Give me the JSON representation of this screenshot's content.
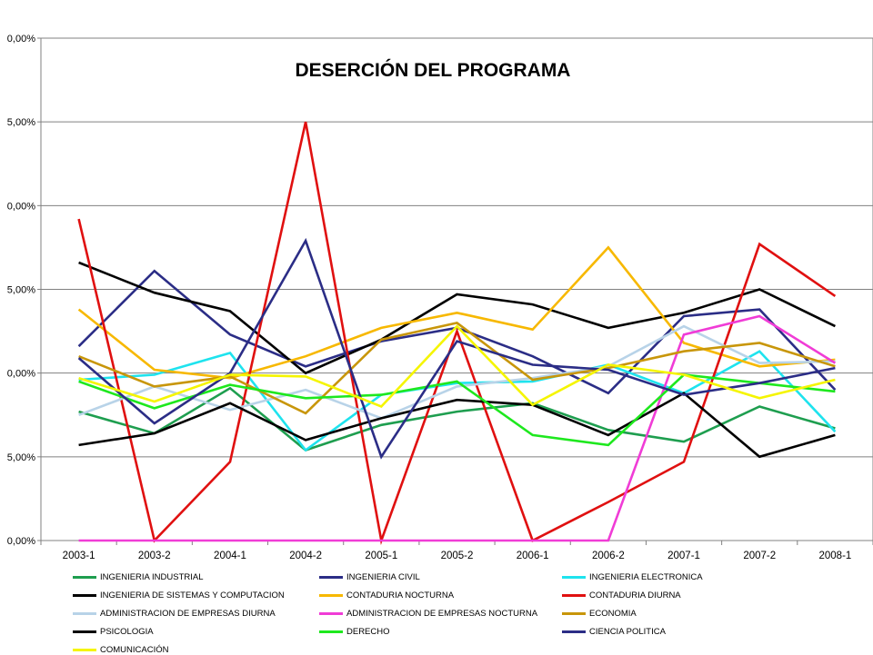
{
  "chart_data": {
    "type": "line",
    "title": "DESERCIÓN DEL PROGRAMA",
    "xlabel": "",
    "ylabel": "",
    "ylim": [
      0,
      30
    ],
    "y_ticks": [
      "0,00%",
      "5,00%",
      "0,00%",
      "5,00%",
      "0,00%",
      "5,00%",
      "0,00%"
    ],
    "categories": [
      "2003-1",
      "2003-2",
      "2004-1",
      "2004-2",
      "2005-1",
      "2005-2",
      "2006-1",
      "2006-2",
      "2007-1",
      "2007-2",
      "2008-1"
    ],
    "grid": "horizontal",
    "legend_position": "bottom",
    "series": [
      {
        "name": "INGENIERIA INDUSTRIAL",
        "color": "#1e9e4f",
        "values": [
          7.7,
          6.4,
          9.1,
          5.4,
          6.9,
          7.7,
          8.2,
          6.6,
          5.9,
          8.0,
          6.7
        ]
      },
      {
        "name": "INGENIERIA CIVIL",
        "color": "#2b2d86",
        "values": [
          11.6,
          16.1,
          12.3,
          10.4,
          11.9,
          12.7,
          11.0,
          8.8,
          13.4,
          13.8,
          9.0
        ]
      },
      {
        "name": "INGENIERIA ELECTRONICA",
        "color": "#1ee3ee",
        "values": [
          9.6,
          9.9,
          11.2,
          5.4,
          8.7,
          9.4,
          9.5,
          10.5,
          8.8,
          11.3,
          6.5
        ]
      },
      {
        "name": "INGENIERIA DE SISTEMAS Y COMPUTACION",
        "color": "#000000",
        "values": [
          16.6,
          14.8,
          13.7,
          10.0,
          12.0,
          14.7,
          14.1,
          12.7,
          13.6,
          15.0,
          12.8
        ]
      },
      {
        "name": "CONTADURIA NOCTURNA",
        "color": "#f7b800",
        "values": [
          13.8,
          10.2,
          9.7,
          11.0,
          12.7,
          13.6,
          12.6,
          17.5,
          11.8,
          10.4,
          10.8
        ]
      },
      {
        "name": "CONTADURIA DIURNA",
        "color": "#e01010",
        "values": [
          19.2,
          0.0,
          4.7,
          25.0,
          0.0,
          12.5,
          0.0,
          2.3,
          4.7,
          17.7,
          14.6
        ]
      },
      {
        "name": "ADMINISTRACION DE EMPRESAS DIURNA",
        "color": "#b8d3e8",
        "values": [
          7.5,
          9.2,
          7.8,
          9.0,
          7.3,
          9.2,
          9.7,
          10.4,
          12.8,
          10.6,
          10.7
        ]
      },
      {
        "name": "ADMINISTRACION DE EMPRESAS NOCTURNA",
        "color": "#f03cd6",
        "values": [
          0.0,
          0.0,
          0.0,
          0.0,
          0.0,
          0.0,
          0.0,
          0.0,
          12.3,
          13.4,
          10.6
        ]
      },
      {
        "name": "ECONOMIA",
        "color": "#c8960a",
        "values": [
          11.0,
          9.2,
          9.8,
          7.6,
          12.0,
          13.0,
          9.6,
          10.3,
          11.3,
          11.8,
          10.4
        ]
      },
      {
        "name": "PSICOLOGIA",
        "color": "#000000",
        "values": [
          5.7,
          6.4,
          8.2,
          6.0,
          7.3,
          8.4,
          8.1,
          6.3,
          8.8,
          5.0,
          6.3
        ]
      },
      {
        "name": "DERECHO",
        "color": "#1ee81e",
        "values": [
          9.5,
          7.9,
          9.3,
          8.5,
          8.7,
          9.5,
          6.3,
          5.7,
          9.9,
          9.4,
          8.9
        ]
      },
      {
        "name": "CIENCIA POLITICA",
        "color": "#2b2d86",
        "values": [
          10.9,
          7.0,
          10.0,
          17.9,
          5.0,
          11.9,
          10.5,
          10.2,
          8.7,
          9.4,
          10.3
        ]
      },
      {
        "name": "COMUNICACIÓN",
        "color": "#f5f500",
        "values": [
          9.7,
          8.3,
          9.9,
          9.8,
          8.0,
          12.8,
          8.1,
          10.5,
          9.9,
          8.5,
          9.6
        ]
      }
    ]
  }
}
